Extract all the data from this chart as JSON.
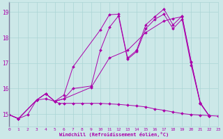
{
  "bg_color": "#cce8e8",
  "line_color": "#aa00aa",
  "xlim": [
    0,
    23
  ],
  "ylim": [
    14.5,
    19.4
  ],
  "yticks": [
    15,
    16,
    17,
    18,
    19
  ],
  "xticks": [
    0,
    1,
    2,
    3,
    4,
    5,
    6,
    7,
    8,
    9,
    10,
    11,
    12,
    13,
    14,
    15,
    16,
    17,
    18,
    19,
    20,
    21,
    22,
    23
  ],
  "xlabel": "Windchill (Refroidissement éolien,°C)",
  "series": [
    {
      "x": [
        0,
        1,
        2,
        3,
        4,
        5,
        5.5,
        6,
        7,
        8,
        9,
        10,
        11,
        12,
        13,
        14,
        15,
        16,
        17,
        18,
        19,
        20,
        21,
        22,
        23
      ],
      "y": [
        14.97,
        14.82,
        14.97,
        15.55,
        15.6,
        15.5,
        15.42,
        15.42,
        15.42,
        15.42,
        15.42,
        15.42,
        15.4,
        15.38,
        15.35,
        15.32,
        15.28,
        15.2,
        15.15,
        15.08,
        15.02,
        14.98,
        14.96,
        14.94,
        14.92
      ]
    },
    {
      "x": [
        0,
        1,
        3,
        4,
        5,
        6,
        7,
        10,
        11,
        12,
        13,
        14,
        15,
        16,
        17,
        18,
        19,
        20,
        21,
        22
      ],
      "y": [
        14.97,
        14.82,
        15.55,
        15.8,
        15.5,
        15.75,
        16.85,
        18.3,
        18.9,
        18.92,
        17.2,
        17.5,
        18.5,
        18.82,
        19.12,
        18.5,
        18.85,
        17.05,
        15.45,
        14.92
      ]
    },
    {
      "x": [
        0,
        1,
        3,
        4,
        5,
        6,
        7,
        9,
        10,
        11,
        12,
        13,
        14,
        15,
        16,
        17,
        18,
        19,
        20,
        21,
        22
      ],
      "y": [
        14.97,
        14.82,
        15.55,
        15.8,
        15.5,
        15.6,
        16.0,
        16.1,
        17.5,
        18.4,
        18.85,
        17.15,
        17.45,
        18.35,
        18.72,
        18.92,
        18.35,
        18.72,
        16.92,
        15.42,
        14.92
      ]
    },
    {
      "x": [
        0,
        1,
        3,
        4,
        5,
        6,
        9,
        11,
        13,
        15,
        17,
        18,
        19,
        20,
        21,
        22
      ],
      "y": [
        14.97,
        14.82,
        15.55,
        15.8,
        15.5,
        15.6,
        16.05,
        17.2,
        17.5,
        18.2,
        18.65,
        18.75,
        18.82,
        17.05,
        15.42,
        14.92
      ]
    }
  ]
}
